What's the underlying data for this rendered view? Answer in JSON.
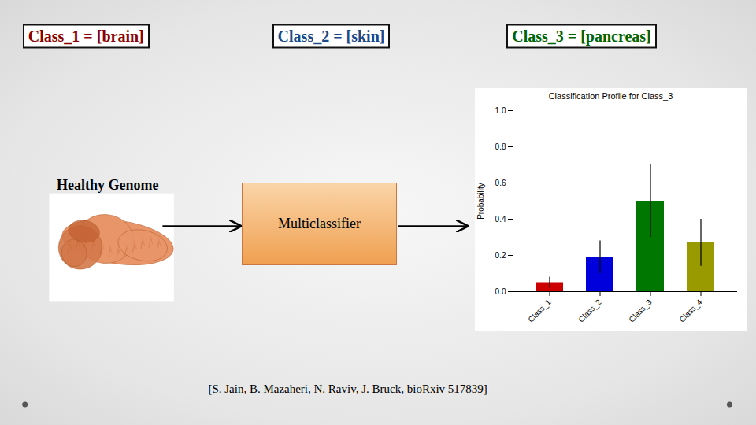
{
  "chart_data": {
    "type": "bar",
    "title": "Classification Profile for Class_3",
    "categories": [
      "Class_1",
      "Class_2",
      "Class_3",
      "Class_4"
    ],
    "values": [
      0.05,
      0.19,
      0.5,
      0.27
    ],
    "errors": [
      0.03,
      0.09,
      0.2,
      0.13
    ],
    "colors": [
      "#cc0000",
      "#0000dd",
      "#007700",
      "#999900"
    ],
    "ylabel": "Probability",
    "ylim": [
      0.0,
      1.0
    ],
    "yticks": [
      {
        "value": 0,
        "label": "0.0"
      },
      0.2,
      0.4,
      0.6,
      0.8,
      {
        "value": 1,
        "label": "1.0"
      }
    ],
    "grid": false,
    "annotations": [
      {
        "text": "Class_1 = [brain]",
        "color": "#8b0000"
      },
      {
        "text": "Class_2 = [skin]",
        "color": "#1a4a8a"
      },
      {
        "text": "Class_3 = [pancreas]",
        "color": "#006400"
      },
      {
        "text": "Healthy Genome",
        "color": "#000000"
      },
      {
        "text": "Multiclassifier",
        "color": "#000000"
      },
      {
        "text": "[S. Jain, B. Mazaheri, N. Raviv, J. Bruck, bioRxiv 517839]",
        "color": "#000000"
      }
    ]
  }
}
